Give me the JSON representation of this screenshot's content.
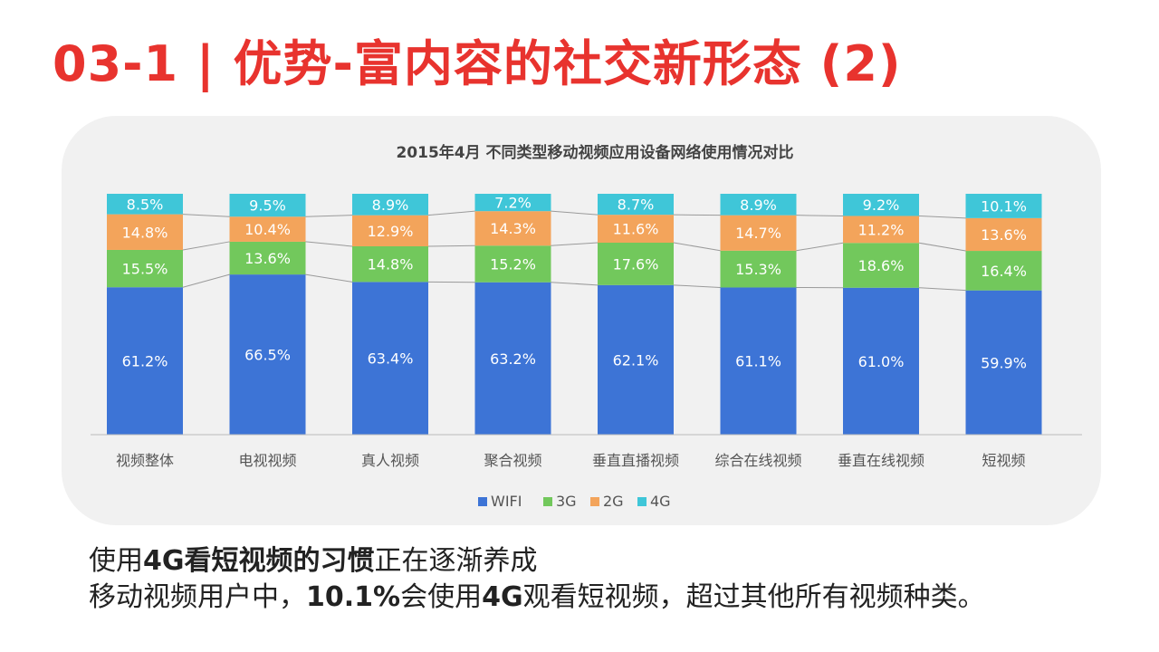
{
  "slide": {
    "title": "03-1 | 优势-富内容的社交新形态 (2)"
  },
  "chart_data": {
    "type": "bar",
    "stacked": true,
    "title": "2015年4月 不同类型移动视频应用设备网络使用情况对比",
    "categories": [
      "视频整体",
      "电视视频",
      "真人视频",
      "聚合视频",
      "垂直直播视频",
      "综合在线视频",
      "垂直在线视频",
      "短视频"
    ],
    "series": [
      {
        "name": "WIFI",
        "color": "#3d74d6",
        "values": [
          61.2,
          66.5,
          63.4,
          63.2,
          62.1,
          61.1,
          61.0,
          59.9
        ],
        "labels": [
          "61.2%",
          "66.5%",
          "63.4%",
          "63.2%",
          "62.1%",
          "61.1%",
          "61.0%",
          "59.9%"
        ]
      },
      {
        "name": "3G",
        "color": "#72c85c",
        "values": [
          15.5,
          13.6,
          14.8,
          15.2,
          17.6,
          15.3,
          18.6,
          16.4
        ],
        "labels": [
          "15.5%",
          "13.6%",
          "14.8%",
          "15.2%",
          "17.6%",
          "15.3%",
          "18.6%",
          "16.4%"
        ]
      },
      {
        "name": "2G",
        "color": "#f3a45b",
        "values": [
          14.8,
          10.4,
          12.9,
          14.3,
          11.6,
          14.7,
          11.2,
          13.6
        ],
        "labels": [
          "14.8%",
          "10.4%",
          "12.9%",
          "14.3%",
          "11.6%",
          "14.7%",
          "11.2%",
          "13.6%"
        ]
      },
      {
        "name": "4G",
        "color": "#3fc6d8",
        "values": [
          8.5,
          9.5,
          8.9,
          7.2,
          8.7,
          8.9,
          9.2,
          10.1
        ],
        "labels": [
          "8.5%",
          "9.5%",
          "8.9%",
          "7.2%",
          "8.7%",
          "8.9%",
          "9.2%",
          "10.1%"
        ]
      }
    ],
    "ylim": [
      0,
      100
    ],
    "legend_position": "bottom"
  },
  "body": {
    "line1": {
      "p1": "使用",
      "b1": "4G看短视频的习惯",
      "p2": "正在逐渐养成"
    },
    "line2": {
      "p1": "移动视频用户中，",
      "b1": "10.1%",
      "p2": "会使用",
      "b2": "4G",
      "p3": "观看短视频，超过其他所有视频种类。"
    }
  }
}
